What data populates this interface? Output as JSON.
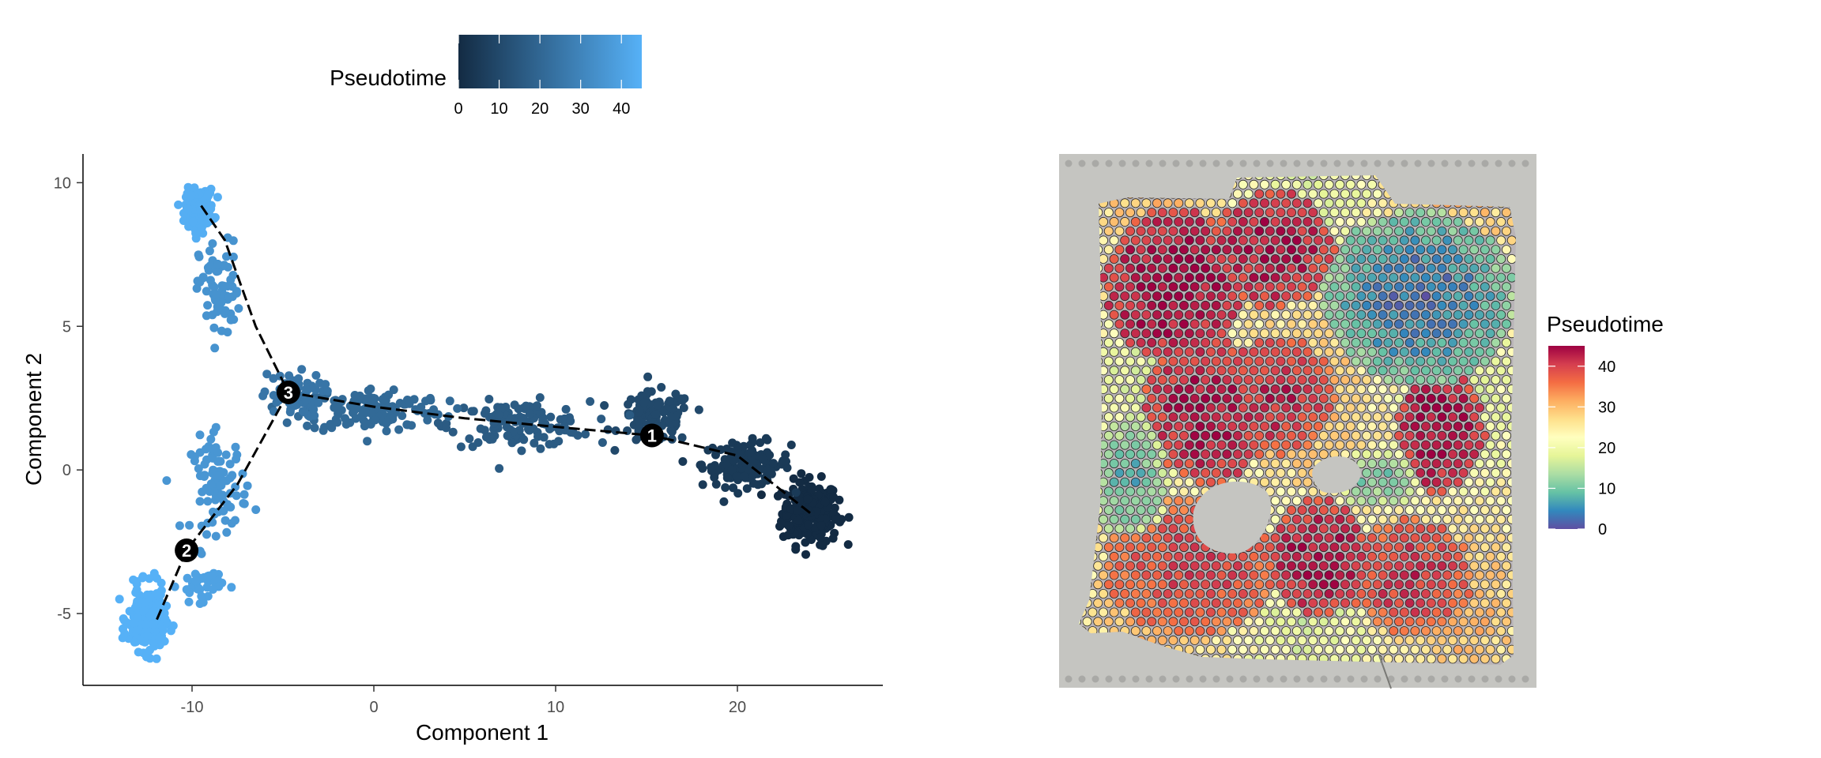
{
  "chart_data": [
    {
      "type": "scatter",
      "title": "",
      "xlabel": "Component 1",
      "ylabel": "Component 2",
      "xlim": [
        -16,
        28
      ],
      "ylim": [
        -7.5,
        11
      ],
      "x_ticks": [
        "-10",
        "0",
        "10",
        "20"
      ],
      "y_ticks": [
        "-5",
        "0",
        "5",
        "10"
      ],
      "color_scale": {
        "title": "Pseudotime",
        "ticks": [
          "0",
          "10",
          "20",
          "30",
          "40"
        ],
        "range": [
          0,
          45
        ],
        "low": "#132b43",
        "high": "#56b1f7"
      },
      "point_groups": [
        {
          "x": 24,
          "y": -1.5,
          "pseudotime": 0,
          "spread_x": 1.4,
          "spread_y": 1.0,
          "n": 230
        },
        {
          "x": 20.5,
          "y": 0.2,
          "pseudotime": 5,
          "spread_x": 2.2,
          "spread_y": 0.7,
          "n": 130
        },
        {
          "x": 15.5,
          "y": 1.8,
          "pseudotime": 10,
          "spread_x": 1.8,
          "spread_y": 0.8,
          "n": 110
        },
        {
          "x": 8,
          "y": 1.6,
          "pseudotime": 16,
          "spread_x": 3.5,
          "spread_y": 0.7,
          "n": 130
        },
        {
          "x": 0,
          "y": 2.1,
          "pseudotime": 21,
          "spread_x": 3.5,
          "spread_y": 0.7,
          "n": 140
        },
        {
          "x": -4.5,
          "y": 2.6,
          "pseudotime": 25,
          "spread_x": 1.5,
          "spread_y": 0.7,
          "n": 70
        },
        {
          "x": -8.5,
          "y": 6.2,
          "pseudotime": 35,
          "spread_x": 1.0,
          "spread_y": 1.6,
          "n": 70
        },
        {
          "x": -9.6,
          "y": 9.1,
          "pseudotime": 44,
          "spread_x": 0.7,
          "spread_y": 0.6,
          "n": 170
        },
        {
          "x": -8.5,
          "y": -0.5,
          "pseudotime": 36,
          "spread_x": 1.4,
          "spread_y": 1.5,
          "n": 90
        },
        {
          "x": -9.5,
          "y": -4.0,
          "pseudotime": 40,
          "spread_x": 1.1,
          "spread_y": 0.5,
          "n": 40
        },
        {
          "x": -12.5,
          "y": -5.2,
          "pseudotime": 45,
          "spread_x": 0.9,
          "spread_y": 1.0,
          "n": 240
        }
      ],
      "trajectory": [
        [
          24,
          -1.5
        ],
        [
          20,
          0.5
        ],
        [
          15.3,
          1.2
        ],
        [
          10,
          1.5
        ],
        [
          5,
          1.8
        ],
        [
          0,
          2.2
        ],
        [
          -4.7,
          2.7
        ],
        [
          -6.5,
          5.0
        ],
        [
          -8.2,
          8.0
        ],
        [
          -9.5,
          9.2
        ]
      ],
      "trajectory_branch": [
        [
          -4.7,
          2.7
        ],
        [
          -7.5,
          -0.5
        ],
        [
          -10.3,
          -2.8
        ],
        [
          -12.0,
          -5.3
        ]
      ],
      "nodes": [
        {
          "label": "1",
          "x": 15.3,
          "y": 1.2
        },
        {
          "label": "2",
          "x": -10.3,
          "y": -2.8
        },
        {
          "label": "3",
          "x": -4.7,
          "y": 2.7
        }
      ]
    },
    {
      "type": "heatmap",
      "title": "",
      "color_scale": {
        "title": "Pseudotime",
        "ticks": [
          "0",
          "10",
          "20",
          "30",
          "40"
        ],
        "range": [
          0,
          45
        ],
        "palette": "Spectral (reversed)"
      },
      "high_regions": [
        {
          "cx": 0.22,
          "cy": 0.22,
          "rx": 0.16,
          "ry": 0.16,
          "pseudotime": 45
        },
        {
          "cx": 0.45,
          "cy": 0.15,
          "rx": 0.14,
          "ry": 0.12,
          "pseudotime": 44
        },
        {
          "cx": 0.3,
          "cy": 0.48,
          "rx": 0.15,
          "ry": 0.15,
          "pseudotime": 44
        },
        {
          "cx": 0.46,
          "cy": 0.45,
          "rx": 0.13,
          "ry": 0.12,
          "pseudotime": 42
        },
        {
          "cx": 0.83,
          "cy": 0.52,
          "rx": 0.1,
          "ry": 0.13,
          "pseudotime": 45
        },
        {
          "cx": 0.26,
          "cy": 0.8,
          "rx": 0.2,
          "ry": 0.14,
          "pseudotime": 40
        },
        {
          "cx": 0.55,
          "cy": 0.78,
          "rx": 0.12,
          "ry": 0.12,
          "pseudotime": 44
        },
        {
          "cx": 0.76,
          "cy": 0.82,
          "rx": 0.14,
          "ry": 0.12,
          "pseudotime": 41
        }
      ],
      "low_regions": [
        {
          "cx": 0.78,
          "cy": 0.25,
          "rx": 0.22,
          "ry": 0.18,
          "pseudotime": 3
        },
        {
          "cx": 0.12,
          "cy": 0.62,
          "rx": 0.09,
          "ry": 0.12,
          "pseudotime": 8
        },
        {
          "cx": 0.68,
          "cy": 0.62,
          "rx": 0.1,
          "ry": 0.06,
          "pseudotime": 10
        }
      ]
    }
  ]
}
